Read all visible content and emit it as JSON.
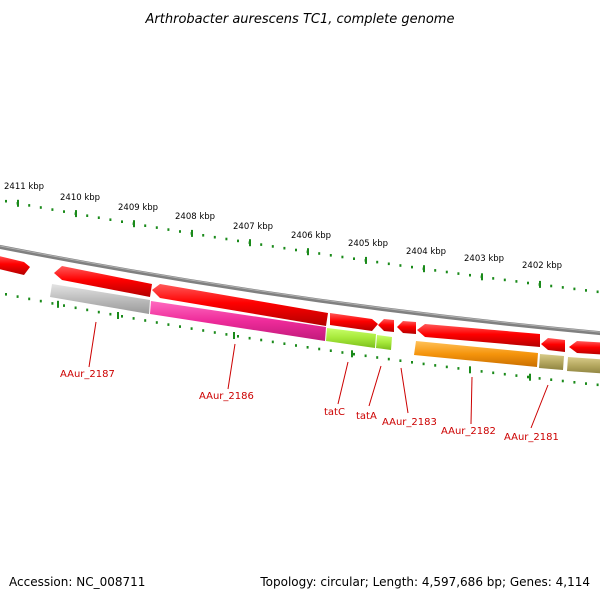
{
  "title": "Arthrobacter aurescens TC1, complete genome",
  "footer": {
    "accession": "Accession: NC_008711",
    "stats": "Topology: circular; Length: 4,597,686 bp; Genes: 4,114"
  },
  "scale": {
    "unit": "kbp",
    "tick_labels": [
      "2411 kbp",
      "2410 kbp",
      "2409 kbp",
      "2408 kbp",
      "2407 kbp",
      "2406 kbp",
      "2405 kbp",
      "2404 kbp",
      "2403 kbp",
      "2402 kbp"
    ]
  },
  "genes": [
    {
      "label": "AAur_2187",
      "color": "#bdbdbd"
    },
    {
      "label": "AAur_2186",
      "color": "#ee2b9a"
    },
    {
      "label": "tatC",
      "color": "#a6e83a"
    },
    {
      "label": "tatA",
      "color": "#a6e83a"
    },
    {
      "label": "AAur_2183",
      "color": ""
    },
    {
      "label": "AAur_2182",
      "color": "#f5940c"
    },
    {
      "label": "AAur_2181",
      "color": "#b5a860"
    }
  ],
  "colors": {
    "cds": "#ff0000",
    "backbone": "#808080",
    "ticks": "#1a8a1a",
    "gene_label": "#cc0000"
  }
}
